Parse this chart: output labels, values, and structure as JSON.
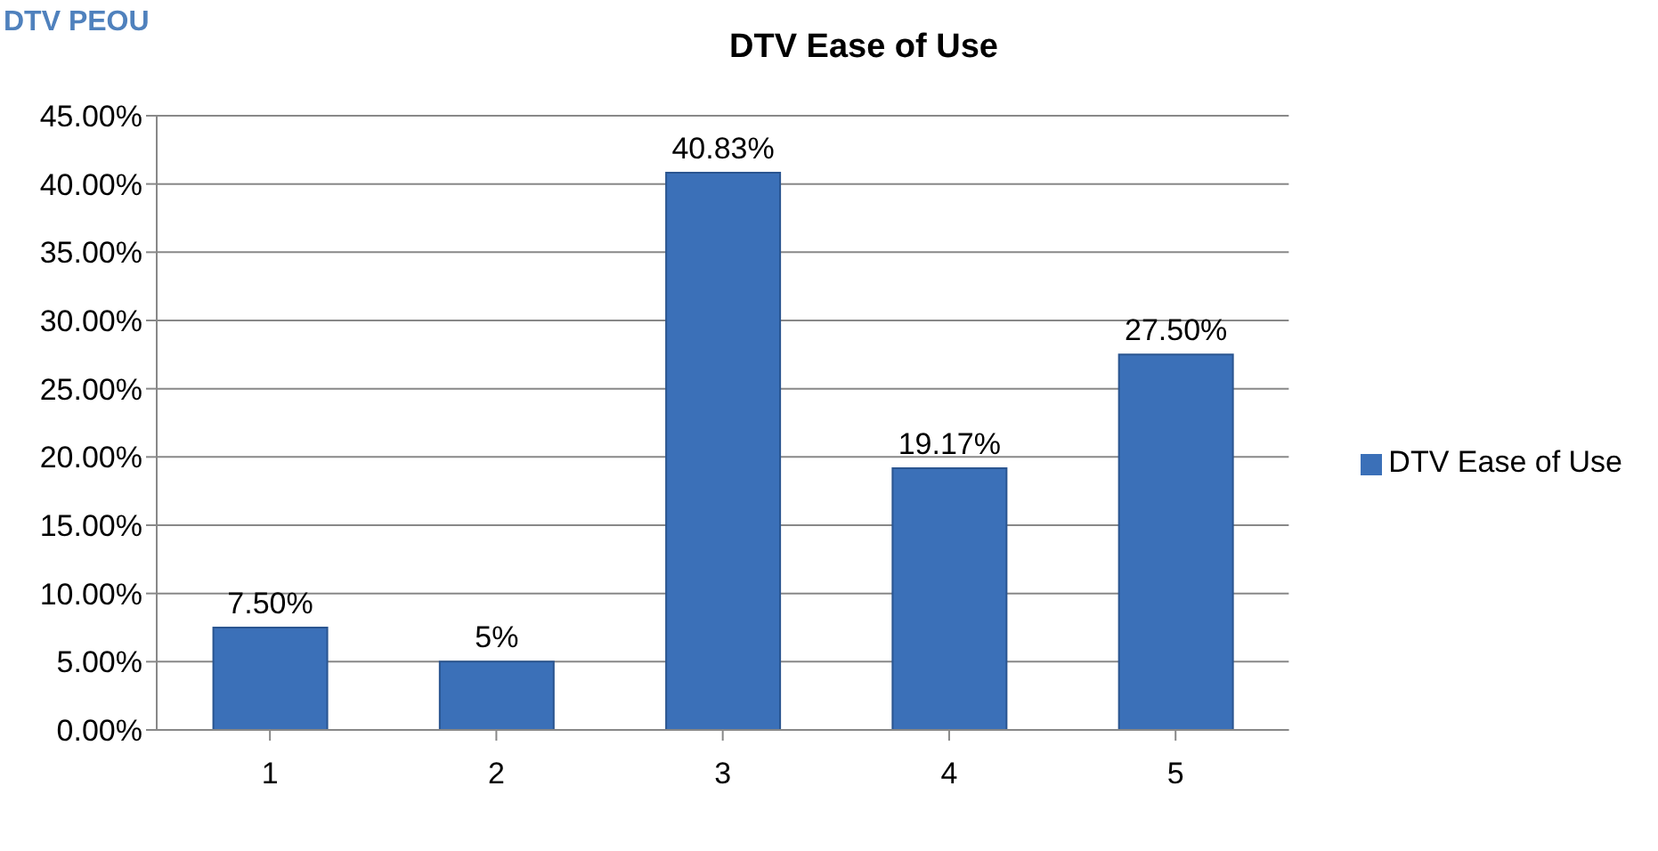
{
  "chart_data": {
    "type": "bar",
    "title": "DTV Ease of Use",
    "annotations": [
      "DTV PEOU"
    ],
    "categories": [
      "1",
      "2",
      "3",
      "4",
      "5"
    ],
    "series": [
      {
        "name": "DTV Ease of Use",
        "color": "#3b70b8",
        "values": [
          7.5,
          5,
          40.83,
          19.17,
          27.5
        ],
        "value_labels": [
          "7.50%",
          "5%",
          "40.83%",
          "19.17%",
          "27.50%"
        ]
      }
    ],
    "ylim": [
      0,
      45
    ],
    "yticks": [
      {
        "value": 0,
        "label": "0.00%"
      },
      {
        "value": 5,
        "label": "5.00%"
      },
      {
        "value": 10,
        "label": "10.00%"
      },
      {
        "value": 15,
        "label": "15.00%"
      },
      {
        "value": 20,
        "label": "20.00%"
      },
      {
        "value": 25,
        "label": "25.00%"
      },
      {
        "value": 30,
        "label": "30.00%"
      },
      {
        "value": 35,
        "label": "35.00%"
      },
      {
        "value": 40,
        "label": "40.00%"
      },
      {
        "value": 45,
        "label": "45.00%"
      }
    ],
    "grid": "y",
    "legend": "right"
  }
}
